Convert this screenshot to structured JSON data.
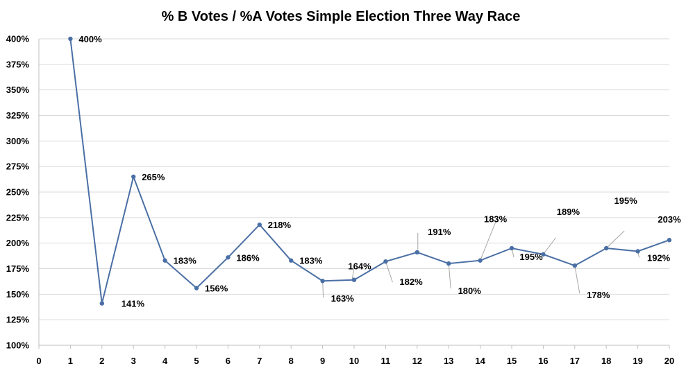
{
  "chart_data": {
    "type": "line",
    "title": "% B Votes / %A Votes Simple Election Three Way Race",
    "xlabel": "",
    "ylabel": "",
    "x": [
      1,
      2,
      3,
      4,
      5,
      6,
      7,
      8,
      9,
      10,
      11,
      12,
      13,
      14,
      15,
      16,
      17,
      18,
      19,
      20
    ],
    "xlim": [
      0,
      20
    ],
    "ylim": [
      100,
      400
    ],
    "x_ticks": [
      "0",
      "1",
      "2",
      "3",
      "4",
      "5",
      "6",
      "7",
      "8",
      "9",
      "10",
      "11",
      "12",
      "13",
      "14",
      "15",
      "16",
      "17",
      "18",
      "19",
      "20"
    ],
    "y_ticks": [
      "100%",
      "125%",
      "150%",
      "175%",
      "200%",
      "225%",
      "250%",
      "275%",
      "300%",
      "325%",
      "350%",
      "375%",
      "400%"
    ],
    "series": [
      {
        "values": [
          400,
          141,
          265,
          183,
          156,
          186,
          218,
          183,
          163,
          164,
          182,
          191,
          180,
          183,
          195,
          189,
          178,
          195,
          192,
          203
        ],
        "labels": [
          "400%",
          "141%",
          "265%",
          "183%",
          "156%",
          "186%",
          "218%",
          "183%",
          "163%",
          "164%",
          "182%",
          "191%",
          "180%",
          "183%",
          "195%",
          "189%",
          "178%",
          "195%",
          "192%",
          "203%"
        ],
        "color": "#4a6fa5"
      }
    ],
    "grid": true,
    "legend": "none"
  }
}
